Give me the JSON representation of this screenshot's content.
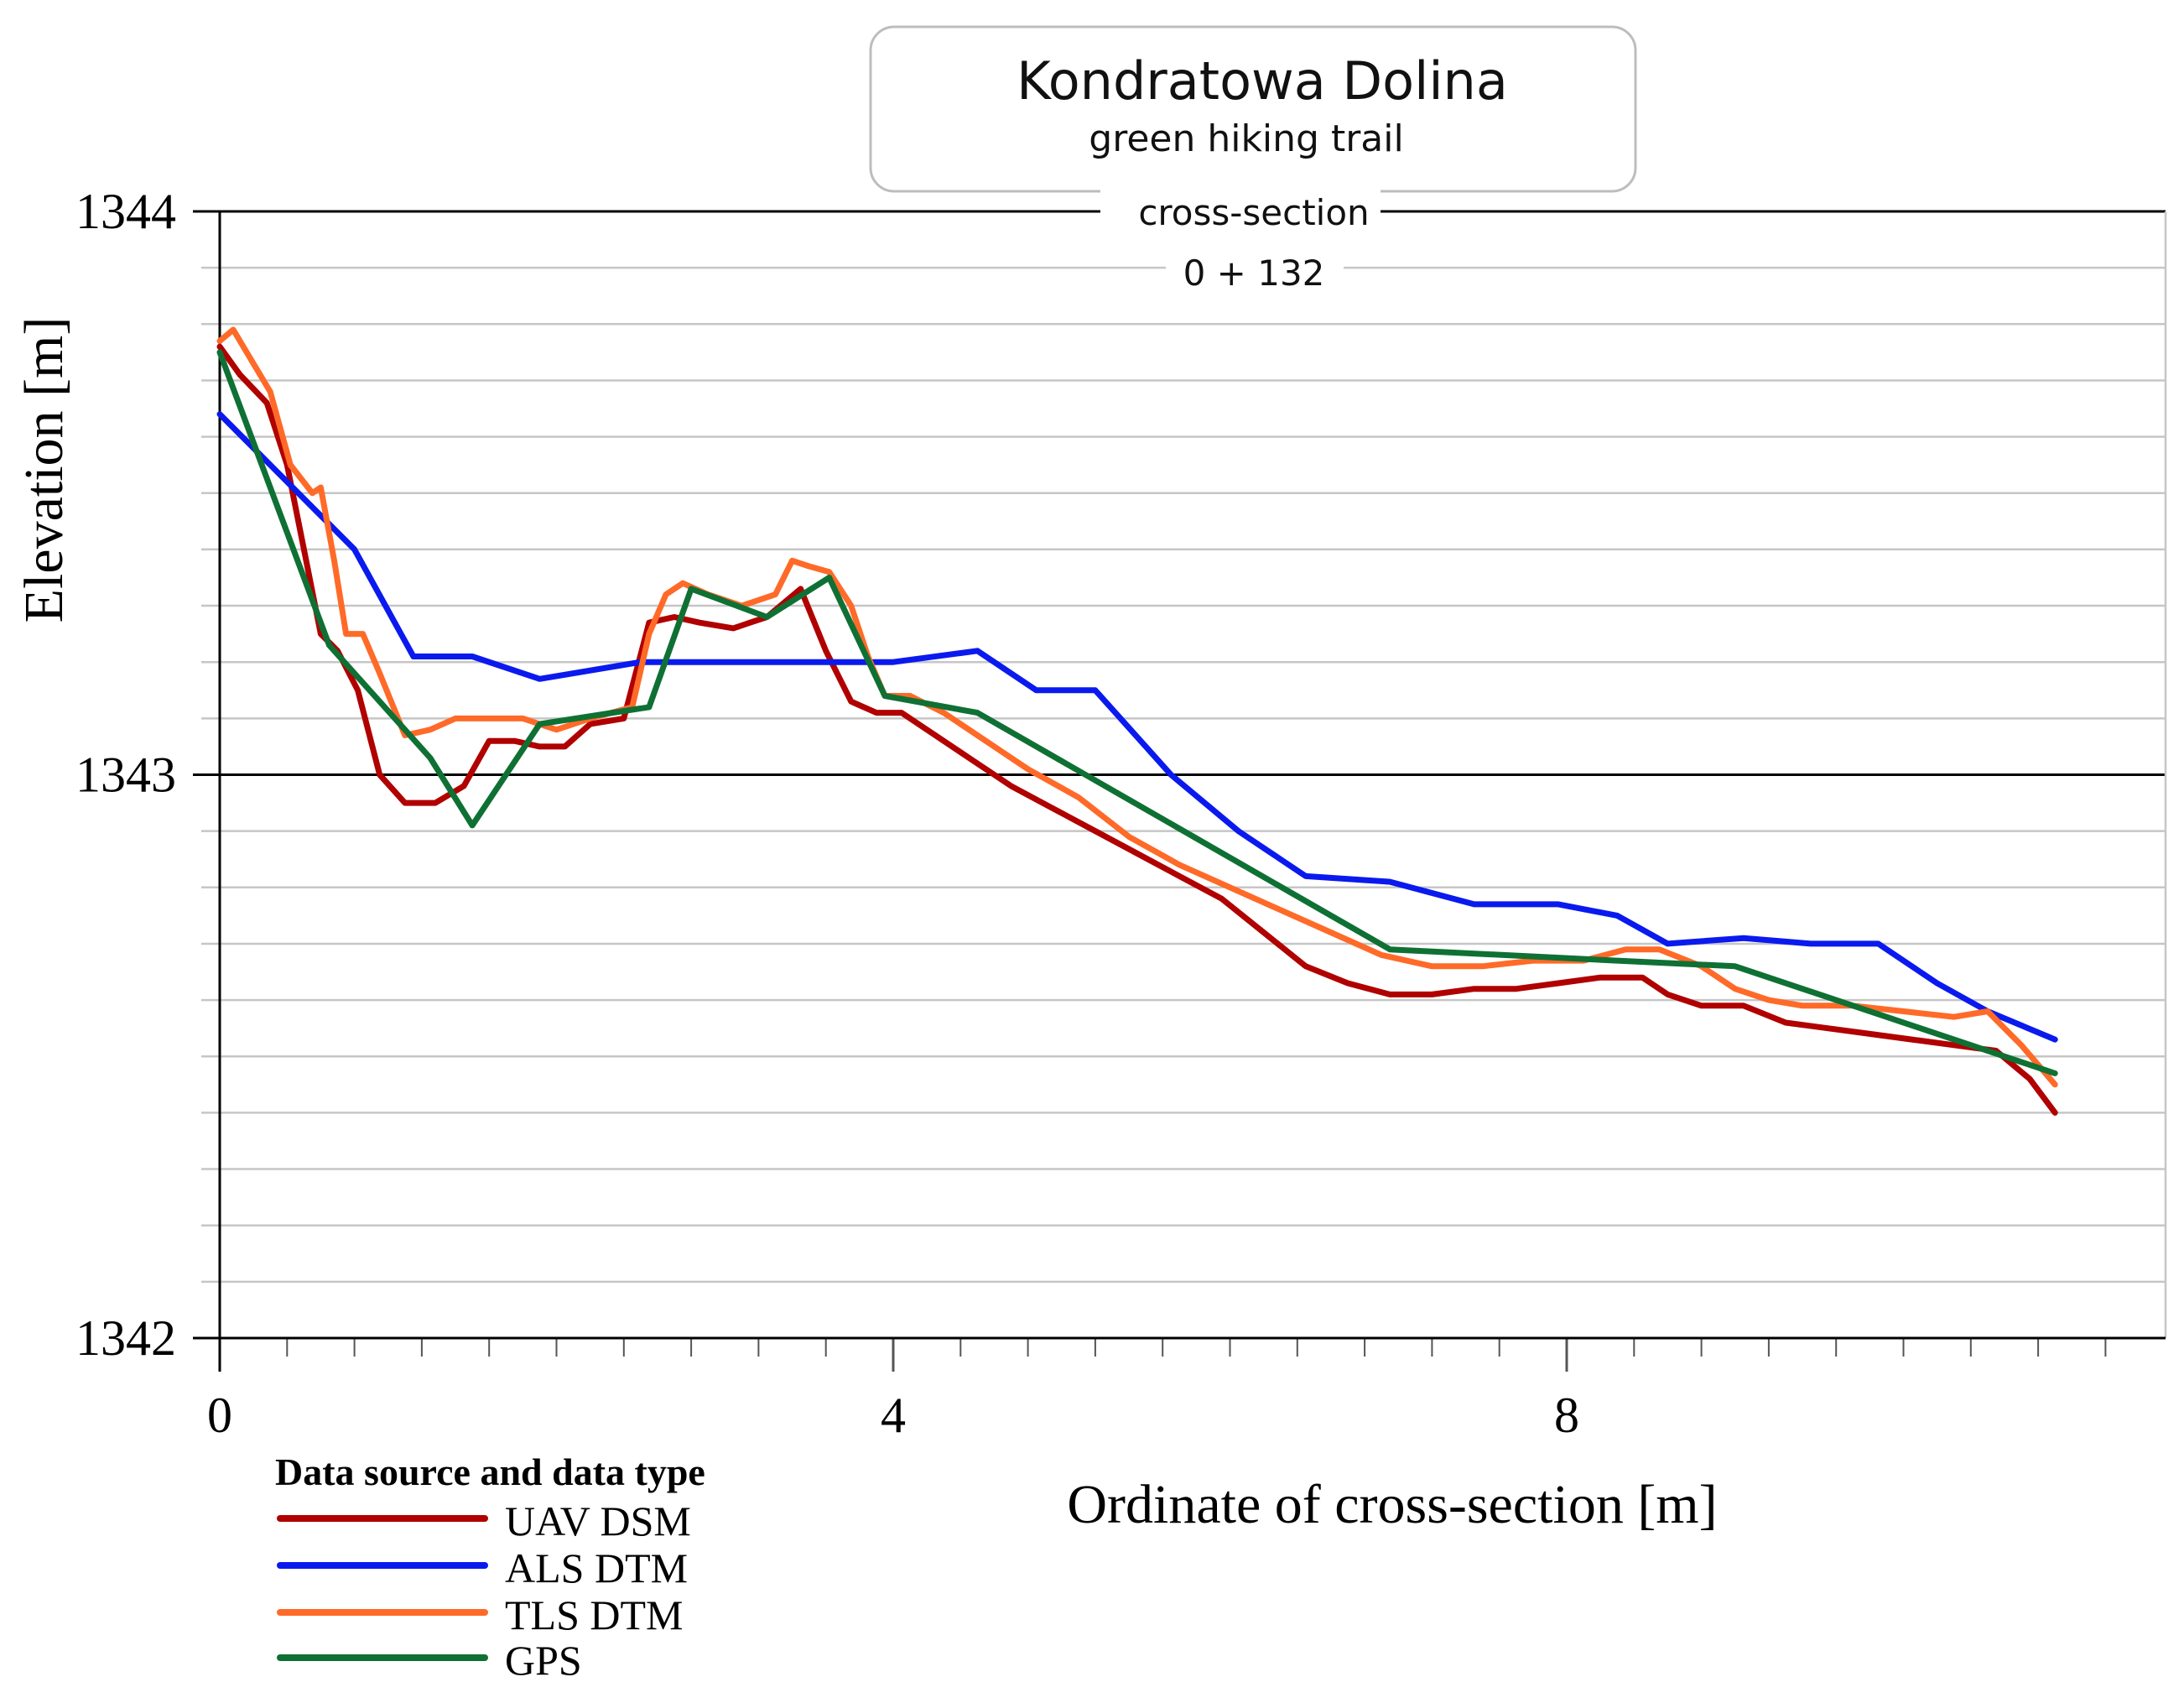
{
  "chart_data": {
    "type": "line",
    "title": "Kondratowa Dolina",
    "subtitle": "green hiking trail",
    "section_label": "cross-section",
    "section_value": "0 + 132",
    "xlabel": "Ordinate of cross-section [m]",
    "ylabel": "Elevation [m]",
    "xlim": [
      0,
      11.5
    ],
    "ylim": [
      1342,
      1344
    ],
    "x_ticks": [
      0,
      4,
      8
    ],
    "y_ticks": [
      1342,
      1343,
      1344
    ],
    "grid": true,
    "legend_title": "Data source and data type",
    "legend_position": "bottom-left",
    "series": [
      {
        "name": "UAV DSM",
        "color": "#b00000",
        "x": [
          0,
          0.12,
          0.28,
          0.4,
          0.5,
          0.6,
          0.7,
          0.82,
          0.95,
          1.1,
          1.28,
          1.45,
          1.6,
          1.75,
          1.9,
          2.05,
          2.2,
          2.4,
          2.55,
          2.7,
          2.85,
          3.05,
          3.25,
          3.45,
          3.6,
          3.75,
          3.9,
          4.05,
          4.25,
          4.45,
          4.7,
          4.95,
          5.2,
          5.45,
          5.7,
          5.95,
          6.2,
          6.45,
          6.7,
          6.95,
          7.2,
          7.45,
          7.7,
          7.95,
          8.2,
          8.45,
          8.6,
          8.8,
          9.05,
          9.3,
          9.55,
          9.8,
          10.05,
          10.3,
          10.55,
          10.75,
          10.9
        ],
        "values": [
          1343.76,
          1343.71,
          1343.66,
          1343.55,
          1343.4,
          1343.25,
          1343.22,
          1343.15,
          1343.0,
          1342.95,
          1342.95,
          1342.98,
          1343.06,
          1343.06,
          1343.05,
          1343.05,
          1343.09,
          1343.1,
          1343.27,
          1343.28,
          1343.27,
          1343.26,
          1343.28,
          1343.33,
          1343.22,
          1343.13,
          1343.11,
          1343.11,
          1343.07,
          1343.03,
          1342.98,
          1342.94,
          1342.9,
          1342.86,
          1342.82,
          1342.78,
          1342.72,
          1342.66,
          1342.63,
          1342.61,
          1342.61,
          1342.62,
          1342.62,
          1342.63,
          1342.64,
          1342.64,
          1342.61,
          1342.59,
          1342.59,
          1342.56,
          1342.55,
          1342.54,
          1342.53,
          1342.52,
          1342.51,
          1342.46,
          1342.4
        ]
      },
      {
        "name": "ALS DTM",
        "color": "#0a1aee",
        "x": [
          0,
          0.8,
          1.15,
          1.5,
          1.9,
          2.5,
          3.0,
          3.5,
          4.0,
          4.5,
          4.85,
          5.2,
          5.65,
          6.05,
          6.45,
          6.95,
          7.45,
          7.95,
          8.3,
          8.6,
          9.05,
          9.45,
          9.85,
          10.2,
          10.5,
          10.9
        ],
        "values": [
          1343.64,
          1343.4,
          1343.21,
          1343.21,
          1343.17,
          1343.2,
          1343.2,
          1343.2,
          1343.2,
          1343.22,
          1343.15,
          1343.15,
          1343.0,
          1342.9,
          1342.82,
          1342.81,
          1342.77,
          1342.77,
          1342.75,
          1342.7,
          1342.71,
          1342.7,
          1342.7,
          1342.63,
          1342.58,
          1342.53
        ]
      },
      {
        "name": "TLS DTM",
        "color": "#ff6a28",
        "x": [
          0,
          0.08,
          0.2,
          0.3,
          0.42,
          0.55,
          0.6,
          0.68,
          0.75,
          0.85,
          0.95,
          1.1,
          1.25,
          1.4,
          1.6,
          1.8,
          2.0,
          2.2,
          2.45,
          2.55,
          2.65,
          2.75,
          2.9,
          3.1,
          3.3,
          3.4,
          3.5,
          3.62,
          3.75,
          3.85,
          3.95,
          4.1,
          4.3,
          4.55,
          4.8,
          5.1,
          5.4,
          5.7,
          6.0,
          6.3,
          6.6,
          6.9,
          7.2,
          7.5,
          7.8,
          8.1,
          8.35,
          8.55,
          8.8,
          9.0,
          9.2,
          9.4,
          9.7,
          10.0,
          10.3,
          10.5,
          10.7,
          10.9
        ],
        "values": [
          1343.77,
          1343.79,
          1343.73,
          1343.68,
          1343.55,
          1343.5,
          1343.51,
          1343.38,
          1343.25,
          1343.25,
          1343.18,
          1343.07,
          1343.08,
          1343.1,
          1343.1,
          1343.1,
          1343.08,
          1343.1,
          1343.12,
          1343.25,
          1343.32,
          1343.34,
          1343.32,
          1343.3,
          1343.32,
          1343.38,
          1343.37,
          1343.36,
          1343.3,
          1343.21,
          1343.14,
          1343.14,
          1343.11,
          1343.06,
          1343.01,
          1342.96,
          1342.89,
          1342.84,
          1342.8,
          1342.76,
          1342.72,
          1342.68,
          1342.66,
          1342.66,
          1342.67,
          1342.67,
          1342.69,
          1342.69,
          1342.66,
          1342.62,
          1342.6,
          1342.59,
          1342.59,
          1342.58,
          1342.57,
          1342.58,
          1342.52,
          1342.45
        ]
      },
      {
        "name": "GPS",
        "color": "#0f7034",
        "x": [
          0,
          0.65,
          1.25,
          1.5,
          1.9,
          2.55,
          2.8,
          3.25,
          3.62,
          3.95,
          4.5,
          6.95,
          8.3,
          9.0,
          10.9
        ],
        "values": [
          1343.75,
          1343.23,
          1343.03,
          1342.91,
          1343.09,
          1343.12,
          1343.33,
          1343.28,
          1343.35,
          1343.14,
          1343.11,
          1342.69,
          1342.67,
          1342.66,
          1342.47
        ]
      }
    ]
  }
}
